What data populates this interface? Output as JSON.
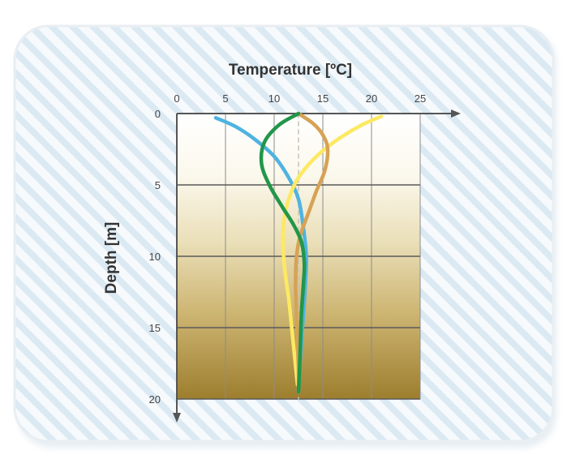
{
  "chart_data": {
    "type": "line",
    "title": "",
    "xlabel": "Temperature [ºC]",
    "ylabel": "Depth [m]",
    "xlim": [
      0,
      25
    ],
    "ylim": [
      20,
      0
    ],
    "x_axis_position": "top",
    "y_axis_inverted": true,
    "x_ticks": [
      0,
      5,
      10,
      15,
      20,
      25
    ],
    "y_ticks": [
      0,
      5,
      10,
      15,
      20
    ],
    "x_tick_labels": [
      "0",
      "5",
      "10",
      "15",
      "20",
      "25"
    ],
    "y_tick_labels": [
      "0",
      "5",
      "10",
      "15",
      "20"
    ],
    "grid": true,
    "legend": "none",
    "series": [
      {
        "color": "#4fb3e0",
        "points": [
          [
            4,
            0.3
          ],
          [
            6,
            0.9
          ],
          [
            8,
            1.8
          ],
          [
            10,
            3.0
          ],
          [
            11.5,
            4.5
          ],
          [
            12.5,
            6
          ],
          [
            13,
            8
          ],
          [
            13.3,
            10
          ],
          [
            13.2,
            12
          ],
          [
            13,
            14
          ],
          [
            12.8,
            16
          ],
          [
            12.6,
            18
          ],
          [
            12.5,
            19.5
          ]
        ]
      },
      {
        "color": "#22964a",
        "points": [
          [
            12.5,
            0
          ],
          [
            10.5,
            0.8
          ],
          [
            9,
            2
          ],
          [
            8.7,
            3.5
          ],
          [
            9.5,
            5
          ],
          [
            10.8,
            6.5
          ],
          [
            12,
            7.8
          ],
          [
            12.8,
            9
          ],
          [
            13.1,
            10.5
          ],
          [
            13,
            12
          ],
          [
            12.8,
            14
          ],
          [
            12.7,
            16
          ],
          [
            12.6,
            18
          ],
          [
            12.5,
            19.5
          ]
        ]
      },
      {
        "color": "#d6a255",
        "points": [
          [
            12.5,
            0
          ],
          [
            14,
            0.7
          ],
          [
            15,
            1.5
          ],
          [
            15.5,
            2.5
          ],
          [
            15.2,
            4
          ],
          [
            14.3,
            5.5
          ],
          [
            13.5,
            7
          ],
          [
            12.7,
            8.5
          ],
          [
            12.3,
            10
          ],
          [
            12.2,
            12
          ],
          [
            12.3,
            14
          ],
          [
            12.4,
            16
          ],
          [
            12.5,
            18
          ],
          [
            12.5,
            19.5
          ]
        ]
      },
      {
        "color": "#fde962",
        "points": [
          [
            21,
            0.2
          ],
          [
            19,
            0.8
          ],
          [
            17,
            1.6
          ],
          [
            15,
            2.6
          ],
          [
            13.5,
            3.6
          ],
          [
            12.3,
            4.7
          ],
          [
            11.5,
            6
          ],
          [
            11,
            7.5
          ],
          [
            10.9,
            9
          ],
          [
            11.1,
            11
          ],
          [
            11.5,
            13
          ],
          [
            11.8,
            15
          ],
          [
            12.1,
            17
          ],
          [
            12.4,
            19
          ]
        ]
      },
      {
        "color": "#c7c2b4",
        "dashed": true,
        "points": [
          [
            12.5,
            0
          ],
          [
            12.5,
            20
          ]
        ]
      }
    ]
  }
}
